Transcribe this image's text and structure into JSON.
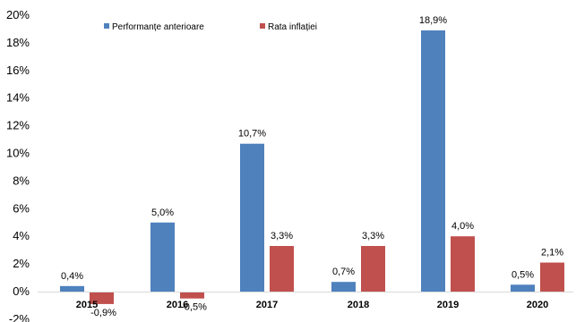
{
  "chart_data": {
    "type": "bar",
    "categories": [
      "2015",
      "2016",
      "2017",
      "2018",
      "2019",
      "2020"
    ],
    "series": [
      {
        "name": "Performanțe anterioare",
        "color": "#4f81bd",
        "values": [
          0.4,
          5.0,
          10.7,
          0.7,
          18.9,
          0.5
        ],
        "labels": [
          "0,4%",
          "5,0%",
          "10,7%",
          "0,7%",
          "18,9%",
          "0,5%"
        ]
      },
      {
        "name": "Rata inflației",
        "color": "#c0504d",
        "values": [
          -0.9,
          -0.5,
          3.3,
          3.3,
          4.0,
          2.1
        ],
        "labels": [
          "-0,9%",
          "-0,5%",
          "3,3%",
          "3,3%",
          "4,0%",
          "2,1%"
        ]
      }
    ],
    "ylim": [
      -2,
      20
    ],
    "yticks": [
      -2,
      0,
      2,
      4,
      6,
      8,
      10,
      12,
      14,
      16,
      18,
      20
    ],
    "ytick_labels": [
      "-2%",
      "0%",
      "2%",
      "4%",
      "6%",
      "8%",
      "10%",
      "12%",
      "14%",
      "16%",
      "18%",
      "20%"
    ],
    "grid": false,
    "legend_position": "top"
  }
}
